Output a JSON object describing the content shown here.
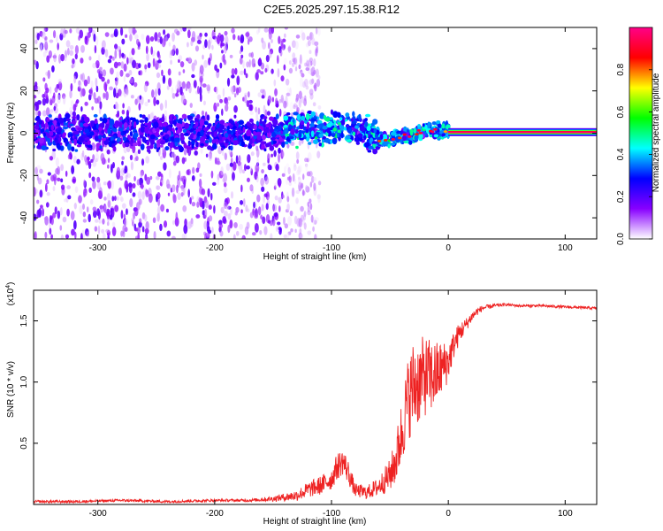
{
  "title": "C2E5.2025.297.15.38.R12",
  "chart_data": [
    {
      "type": "heatmap",
      "name": "spectrogram",
      "xlabel": "Height of straight line (km)",
      "ylabel": "Frequency (Hz)",
      "xlim": [
        -355,
        127
      ],
      "ylim": [
        -50,
        50
      ],
      "xticks": [
        -300,
        -200,
        -100,
        0,
        100
      ],
      "yticks": [
        -40,
        -20,
        0,
        20,
        40
      ],
      "xtick_labels": [
        "-300",
        "-200",
        "-100",
        "0",
        "100"
      ],
      "ytick_labels": [
        "-40",
        "-20",
        "0",
        "20",
        "40"
      ],
      "colorbar": {
        "label": "Normalized spectral amplitude",
        "range": [
          0,
          1
        ],
        "ticks": [
          "0.0",
          "0.2",
          "0.4",
          "0.6",
          "0.8"
        ],
        "tick_values": [
          0,
          0.2,
          0.4,
          0.6,
          0.8
        ],
        "colormap": [
          "#ffffff",
          "#8800ff",
          "#0000ff",
          "#00ffff",
          "#00ff00",
          "#ffff00",
          "#ff0000",
          "#ff0088"
        ]
      },
      "trace_center_hz": [
        [
          -355,
          0
        ],
        [
          -300,
          0
        ],
        [
          -250,
          0
        ],
        [
          -200,
          0
        ],
        [
          -150,
          0
        ],
        [
          -120,
          3
        ],
        [
          -100,
          2
        ],
        [
          -80,
          3
        ],
        [
          -60,
          -3
        ],
        [
          -45,
          -2
        ],
        [
          -30,
          -1
        ],
        [
          -20,
          2
        ],
        [
          -10,
          1
        ],
        [
          -5,
          2
        ],
        [
          0,
          1
        ],
        [
          127,
          1
        ]
      ],
      "steady_carrier": {
        "start_km": 0,
        "end_km": 127,
        "freq_hz": 0.5,
        "amplitude": 1.0
      },
      "scatter_extent_km": [
        -355,
        -140
      ]
    },
    {
      "type": "line",
      "name": "snr",
      "xlabel": "Height of straight line (km)",
      "ylabel": "SNR (10 * v/v)",
      "y_exponent_label": "(x10",
      "y_exponent_power": "4",
      "y_exponent_close": ")",
      "xlim": [
        -355,
        127
      ],
      "ylim": [
        0,
        1.75
      ],
      "xticks": [
        -300,
        -200,
        -100,
        0,
        100
      ],
      "yticks": [
        0.5,
        1.0,
        1.5
      ],
      "xtick_labels": [
        "-300",
        "-200",
        "-100",
        "0",
        "100"
      ],
      "ytick_labels": [
        "0.5",
        "1.0",
        "1.5"
      ],
      "color": "#ee2222",
      "series": [
        {
          "name": "SNR",
          "x": [
            -355,
            -320,
            -280,
            -240,
            -200,
            -170,
            -150,
            -130,
            -120,
            -110,
            -100,
            -95,
            -90,
            -85,
            -80,
            -70,
            -60,
            -50,
            -45,
            -40,
            -35,
            -30,
            -25,
            -20,
            -15,
            -10,
            -5,
            0,
            5,
            10,
            15,
            20,
            25,
            30,
            40,
            50,
            60,
            80,
            100,
            127
          ],
          "y": [
            0.02,
            0.02,
            0.03,
            0.02,
            0.03,
            0.03,
            0.04,
            0.06,
            0.1,
            0.13,
            0.18,
            0.28,
            0.32,
            0.22,
            0.1,
            0.08,
            0.12,
            0.2,
            0.3,
            0.5,
            0.75,
            0.85,
            0.9,
            0.95,
            0.95,
            0.98,
            1.05,
            1.12,
            1.28,
            1.38,
            1.45,
            1.52,
            1.57,
            1.6,
            1.62,
            1.63,
            1.62,
            1.62,
            1.61,
            1.6
          ],
          "noise": [
            0.01,
            0.01,
            0.01,
            0.01,
            0.01,
            0.01,
            0.02,
            0.04,
            0.06,
            0.07,
            0.08,
            0.1,
            0.1,
            0.09,
            0.05,
            0.05,
            0.07,
            0.12,
            0.18,
            0.25,
            0.3,
            0.35,
            0.32,
            0.3,
            0.28,
            0.25,
            0.2,
            0.15,
            0.1,
            0.08,
            0.05,
            0.04,
            0.03,
            0.02,
            0.015,
            0.01,
            0.01,
            0.01,
            0.01,
            0.01
          ]
        }
      ]
    }
  ]
}
